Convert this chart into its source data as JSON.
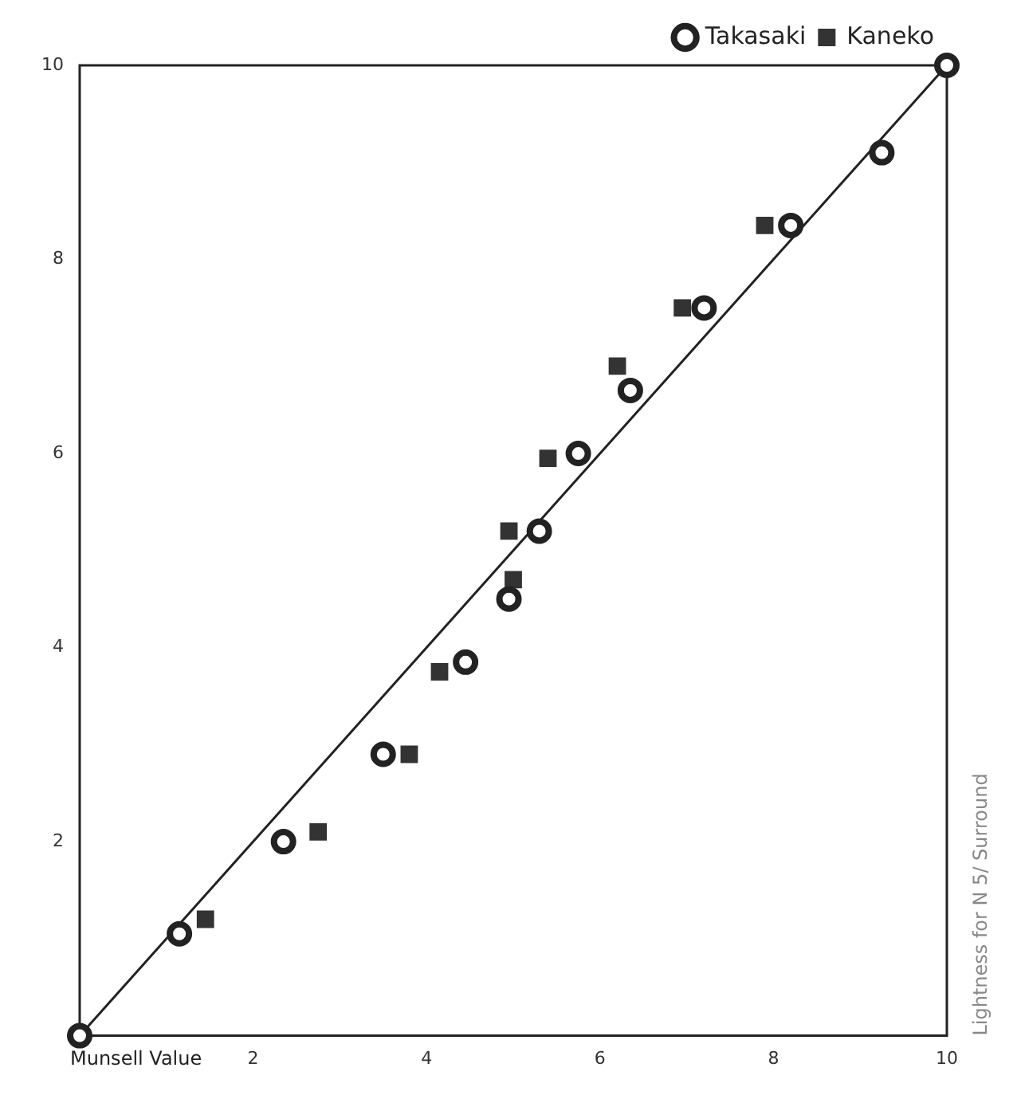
{
  "chart_data": {
    "type": "scatter",
    "xlabel": "Munsell Value",
    "ylabel": "Lightness for N 5/ Surround",
    "xlim": [
      0,
      10
    ],
    "ylim": [
      0,
      10
    ],
    "xticks": [
      2,
      4,
      6,
      8,
      10
    ],
    "yticks": [
      2,
      4,
      6,
      8,
      10
    ],
    "grid": false,
    "legend": "top right",
    "series": [
      {
        "name": "Takasaki",
        "marker": "circle",
        "color": "#222222",
        "x": [
          0,
          1.15,
          2.35,
          3.5,
          4.45,
          4.95,
          5.3,
          5.75,
          6.35,
          7.2,
          8.2,
          9.25,
          10
        ],
        "values": [
          0,
          1.05,
          2.0,
          2.9,
          3.85,
          4.5,
          5.2,
          6.0,
          6.65,
          7.5,
          8.35,
          9.1,
          10
        ]
      },
      {
        "name": "Kaneko",
        "marker": "square",
        "color": "#333333",
        "x": [
          1.45,
          2.75,
          3.8,
          4.15,
          5.0,
          4.95,
          5.4,
          6.2,
          6.95,
          7.9
        ],
        "values": [
          1.2,
          2.1,
          2.9,
          3.75,
          4.7,
          5.2,
          5.95,
          6.9,
          7.5,
          8.35
        ]
      },
      {
        "type": "line",
        "color": "#222222",
        "x": [
          0,
          10
        ],
        "values": [
          0,
          10
        ]
      }
    ]
  }
}
